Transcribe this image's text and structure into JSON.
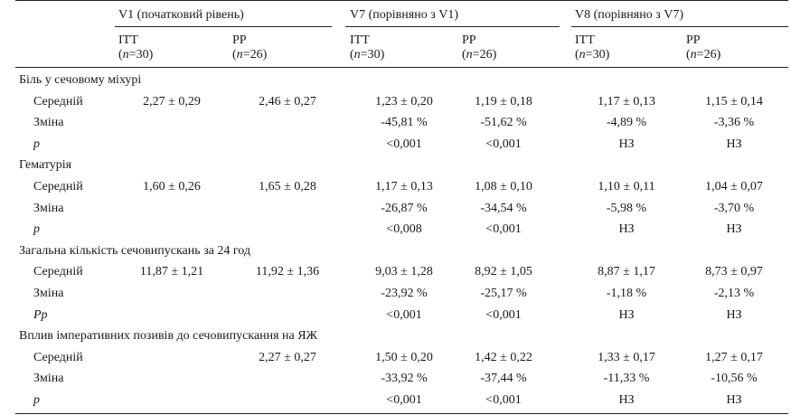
{
  "header": {
    "groups": [
      {
        "label": "V1 (початковий рівень)"
      },
      {
        "label": "V7 (порівняно з V1)"
      },
      {
        "label": "V8 (порівняно з V7)"
      }
    ],
    "subcols": [
      {
        "name": "ІТТ",
        "n_var": "n",
        "n_val": "=30"
      },
      {
        "name": "PP",
        "n_var": "n",
        "n_val": "=26"
      },
      {
        "name": "ІТТ",
        "n_var": "n",
        "n_val": "=30"
      },
      {
        "name": "PP",
        "n_var": "n",
        "n_val": "=26"
      },
      {
        "name": "ІТТ",
        "n_var": "n",
        "n_val": "=30"
      },
      {
        "name": "PP",
        "n_var": "n",
        "n_val": "=26"
      }
    ]
  },
  "sections": [
    {
      "title": "Біль у сечовому міхурі",
      "rows": [
        {
          "label": "Середній",
          "italic": false,
          "cells": [
            "2,27 ± 0,29",
            "2,46 ± 0,27",
            "1,23 ± 0,20",
            "1,19 ± 0,18",
            "1,17 ± 0,13",
            "1,15 ± 0,14"
          ]
        },
        {
          "label": "Зміна",
          "italic": false,
          "cells": [
            "",
            "",
            "-45,81 %",
            "-51,62 %",
            "-4,89 %",
            "-3,36 %"
          ]
        },
        {
          "label": "p",
          "italic": true,
          "cells": [
            "",
            "",
            "<0,001",
            "<0,001",
            "НЗ",
            "НЗ"
          ]
        }
      ]
    },
    {
      "title": "Гематурія",
      "rows": [
        {
          "label": "Середній",
          "italic": false,
          "cells": [
            "1,60 ± 0,26",
            "1,65 ± 0,28",
            "1,17 ± 0,13",
            "1,08 ± 0,10",
            "1,10 ± 0,11",
            "1,04 ± 0,07"
          ]
        },
        {
          "label": "Зміна",
          "italic": false,
          "cells": [
            "",
            "",
            "-26,87 %",
            "-34,54 %",
            "-5,98 %",
            "-3,70 %"
          ]
        },
        {
          "label": "p",
          "italic": true,
          "cells": [
            "",
            "",
            "<0,008",
            "<0,001",
            "НЗ",
            "НЗ"
          ]
        }
      ]
    },
    {
      "title": "Загальна кількість сечовипускань за 24 год",
      "rows": [
        {
          "label": "Середній",
          "italic": false,
          "cells": [
            "11,87 ± 1,21",
            "11,92 ± 1,36",
            "9,03 ± 1,28",
            "8,92 ± 1,05",
            "8,87 ± 1,17",
            "8,73 ± 0,97"
          ]
        },
        {
          "label": "Зміна",
          "italic": false,
          "cells": [
            "",
            "",
            "-23,92 %",
            "-25,17 %",
            "-1,18 %",
            "-2,13 %"
          ]
        },
        {
          "label": "Pp",
          "italic": true,
          "cells": [
            "",
            "",
            "<0,001",
            "<0,001",
            "НЗ",
            "НЗ"
          ]
        }
      ]
    },
    {
      "title": "Вплив імперативних позивів до сечовипускання на ЯЖ",
      "rows": [
        {
          "label": "Середній",
          "italic": false,
          "cells": [
            "",
            "2,27 ± 0,27",
            "1,50 ± 0,20",
            "1,42 ± 0,22",
            "1,33 ± 0,17",
            "1,27 ± 0,17"
          ]
        },
        {
          "label": "Зміна",
          "italic": false,
          "cells": [
            "",
            "",
            "-33,92 %",
            "-37,44 %",
            "-11,33 %",
            "-10,56 %"
          ]
        },
        {
          "label": "p",
          "italic": true,
          "cells": [
            "",
            "",
            "<0,001",
            "<0,001",
            "НЗ",
            "НЗ"
          ]
        }
      ]
    }
  ]
}
